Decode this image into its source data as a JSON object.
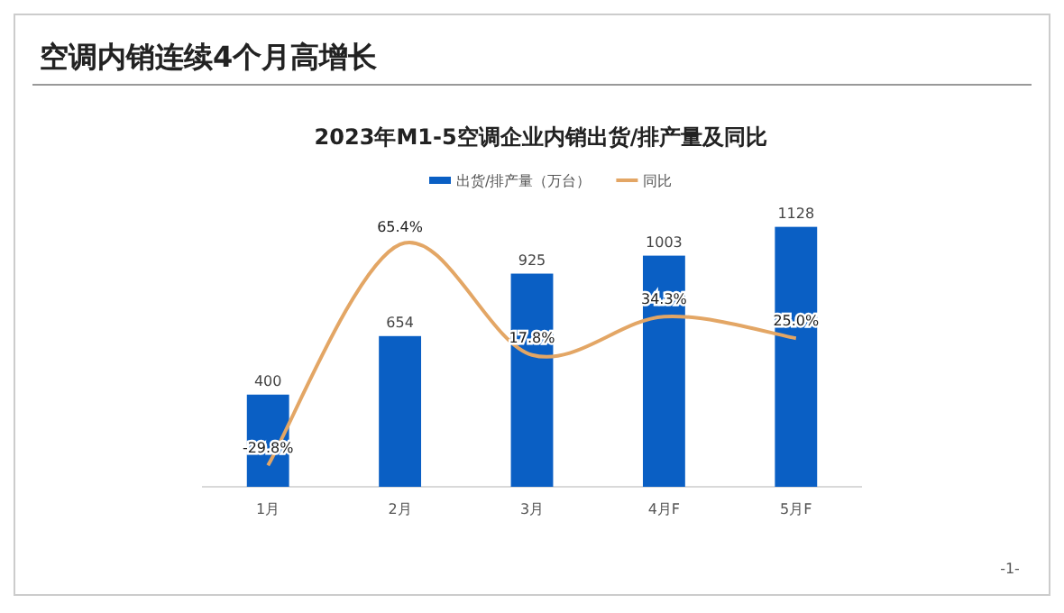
{
  "chart_data": {
    "type": "bar",
    "title": "空调内销连续4个月高增长",
    "subtitle": "2023年M1-5空调企业内销出货/排产量及同比",
    "categories": [
      "1月",
      "2月",
      "3月",
      "4月F",
      "5月F"
    ],
    "series": [
      {
        "name": "出货/排产量（万台）",
        "color": "#0a5fc4",
        "values": [
          400,
          654,
          925,
          1003,
          1128
        ],
        "value_labels": [
          "400",
          "654",
          "925",
          "1003",
          "1128"
        ]
      },
      {
        "name": "同比",
        "type": "line",
        "axis": "y2",
        "color": "#e3a665",
        "values": [
          -29.8,
          65.4,
          17.8,
          34.3,
          25.0
        ],
        "value_labels": [
          "-29.8%",
          "65.4%",
          "17.8%",
          "34.3%",
          "25.0%"
        ]
      }
    ],
    "ylim": [
      0,
      1330
    ],
    "y2lim": [
      -39,
      93
    ],
    "legend": "top",
    "tick_labels": "x",
    "annotations": [
      "-1-"
    ]
  }
}
